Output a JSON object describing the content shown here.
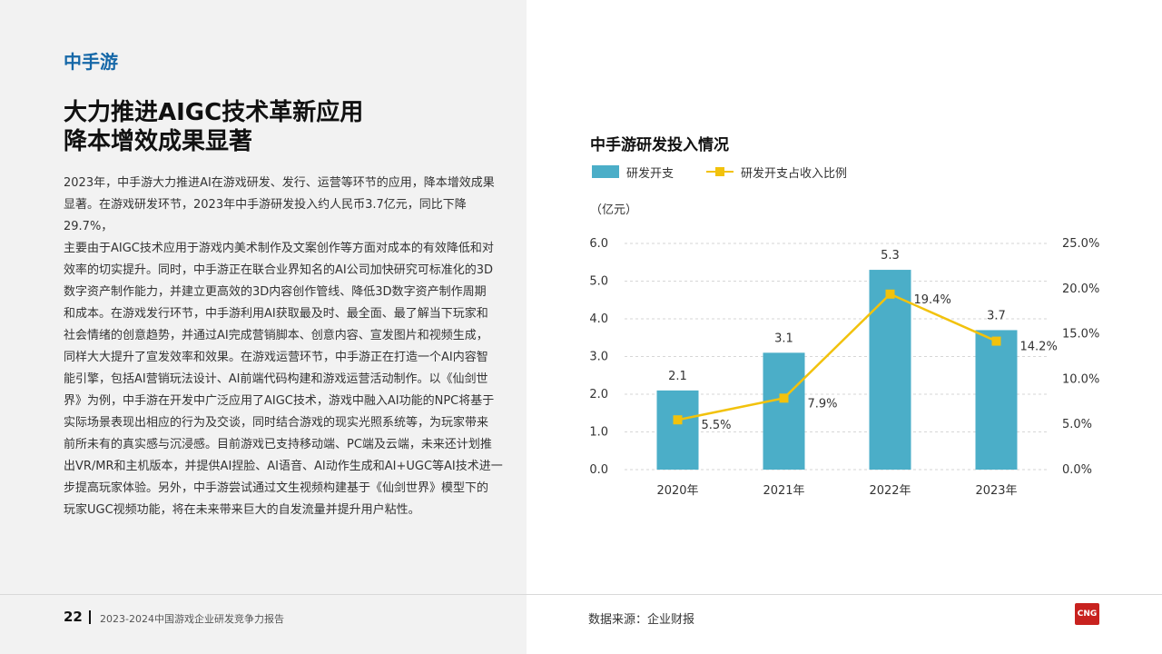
{
  "company": "中手游",
  "title_lines": [
    "大力推进AIGC技术革新应用",
    "降本增效成果显著"
  ],
  "body_lines": [
    "2023年，中手游大力推进AI在游戏研发、发行、运营等环节的应用，降本增效成果",
    "显著。在游戏研发环节，2023年中手游研发投入约人民币3.7亿元，同比下降29.7%，",
    "主要由于AIGC技术应用于游戏内美术制作及文案创作等方面对成本的有效降低和对",
    "效率的切实提升。同时，中手游正在联合业界知名的AI公司加快研究可标准化的3D",
    "数字资产制作能力，并建立更高效的3D内容创作管线、降低3D数字资产制作周期",
    "和成本。在游戏发行环节，中手游利用AI获取最及时、最全面、最了解当下玩家和",
    "社会情绪的创意趋势，并通过AI完成营销脚本、创意内容、宣发图片和视频生成，",
    "同样大大提升了宣发效率和效果。在游戏运营环节，中手游正在打造一个AI内容智",
    "能引擎，包括AI营销玩法设计、AI前端代码构建和游戏运营活动制作。以《仙剑世",
    "界》为例，中手游在开发中广泛应用了AIGC技术，游戏中融入AI功能的NPC将基于",
    "实际场景表现出相应的行为及交谈，同时结合游戏的现实光照系统等，为玩家带来",
    "前所未有的真实感与沉浸感。目前游戏已支持移动端、PC端及云端，未来还计划推",
    "出VR/MR和主机版本，并提供AI捏脸、AI语音、AI动作生成和AI+UGC等AI技术进一",
    "步提高玩家体验。另外，中手游尝试通过文生视频构建基于《仙剑世界》模型下的",
    "玩家UGC视频功能，将在未来带来巨大的自发流量并提升用户粘性。"
  ],
  "footer": {
    "page": "22",
    "report": "2023-2024中国游戏企业研发竞争力报告"
  },
  "source": "数据来源：企业财报",
  "logo_text": "CNG",
  "colors": {
    "bar": "#4baec8",
    "line": "#f2c20c",
    "accent": "#1668a8"
  },
  "chart_data": {
    "type": "bar+line",
    "title": "中手游研发投入情况",
    "unit_label": "（亿元）",
    "categories": [
      "2020年",
      "2021年",
      "2022年",
      "2023年"
    ],
    "series": [
      {
        "name": "研发开支",
        "type": "bar",
        "axis": "left",
        "values": [
          2.1,
          3.1,
          5.3,
          3.7
        ],
        "labels": [
          "2.1",
          "3.1",
          "5.3",
          "3.7"
        ]
      },
      {
        "name": "研发开支占收入比例",
        "type": "line",
        "axis": "right",
        "values": [
          5.5,
          7.9,
          19.4,
          14.2
        ],
        "labels": [
          "5.5%",
          "7.9%",
          "19.4%",
          "14.2%"
        ]
      }
    ],
    "y_left": {
      "min": 0,
      "max": 6,
      "ticks": [
        "0.0",
        "1.0",
        "2.0",
        "3.0",
        "4.0",
        "5.0",
        "6.0"
      ]
    },
    "y_right": {
      "min": 0,
      "max": 25,
      "ticks": [
        "0.0%",
        "5.0%",
        "10.0%",
        "15.0%",
        "20.0%",
        "25.0%"
      ]
    },
    "grid": "dashed horizontal",
    "legend_position": "top-left"
  }
}
